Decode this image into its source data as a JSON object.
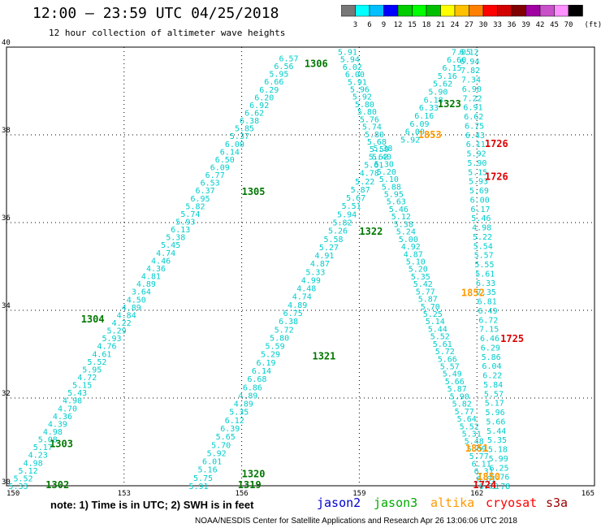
{
  "header": {
    "title": "12:00 — 23:59 UTC 04/25/2018",
    "subtitle": "12 hour collection of altimeter wave heights"
  },
  "legend": {
    "unit": "(ft)",
    "colors": [
      "#777777",
      "#00ffff",
      "#00bfff",
      "#0000ff",
      "#00cd00",
      "#00ff00",
      "#00bf00",
      "#ffff00",
      "#ffc000",
      "#ff8000",
      "#ff0000",
      "#d20000",
      "#800000",
      "#a000a0",
      "#c850c8",
      "#ff90ff",
      "#000000"
    ],
    "labels": [
      "3",
      "6",
      "9",
      "12",
      "15",
      "18",
      "21",
      "24",
      "27",
      "30",
      "33",
      "36",
      "39",
      "42",
      "45",
      "70"
    ]
  },
  "note": "note: 1) Time is in UTC; 2) SWH is in feet",
  "missions": [
    {
      "name": "jason2",
      "color": "#0000cc"
    },
    {
      "name": "jason3",
      "color": "#00aa00"
    },
    {
      "name": "altika",
      "color": "#ff9900"
    },
    {
      "name": "cryosat",
      "color": "#ff0000"
    },
    {
      "name": "s3a",
      "color": "#990000"
    }
  ],
  "footer": "NOAA/NESDIS Center for Satellite Applications and Research    Apr 26 13:06:06 UTC 2018",
  "chart_data": {
    "type": "scatter",
    "title": "12:00 — 23:59 UTC 04/25/2018",
    "x_ticks": [
      "150",
      "153",
      "156",
      "159",
      "162",
      "165"
    ],
    "y_ticks": [
      "30",
      "32",
      "34",
      "36",
      "38",
      "40"
    ],
    "xlim": [
      150,
      165
    ],
    "ylim": [
      30,
      40
    ],
    "grid": true,
    "pass_labels": [
      {
        "text": "1306",
        "lon": 157.6,
        "lat": 39.62,
        "color": "#007700"
      },
      {
        "text": "1305",
        "lon": 156.0,
        "lat": 36.7,
        "color": "#007700"
      },
      {
        "text": "1304",
        "lon": 151.9,
        "lat": 33.8,
        "color": "#007700"
      },
      {
        "text": "1303",
        "lon": 151.1,
        "lat": 30.95,
        "color": "#007700"
      },
      {
        "text": "1302",
        "lon": 151.0,
        "lat": 30.02,
        "color": "#007700"
      },
      {
        "text": "1323",
        "lon": 161.0,
        "lat": 38.7,
        "color": "#007700"
      },
      {
        "text": "1322",
        "lon": 159.0,
        "lat": 35.8,
        "color": "#007700"
      },
      {
        "text": "1321",
        "lon": 157.8,
        "lat": 32.95,
        "color": "#007700"
      },
      {
        "text": "1320",
        "lon": 156.0,
        "lat": 30.27,
        "color": "#007700"
      },
      {
        "text": "1319",
        "lon": 155.9,
        "lat": 30.02,
        "color": "#007700"
      },
      {
        "text": "1726",
        "lon": 162.2,
        "lat": 37.8,
        "color": "#dd0000"
      },
      {
        "text": "1726",
        "lon": 162.2,
        "lat": 37.05,
        "color": "#dd0000"
      },
      {
        "text": "1725",
        "lon": 162.6,
        "lat": 33.35,
        "color": "#dd0000"
      },
      {
        "text": "1724",
        "lon": 161.9,
        "lat": 30.02,
        "color": "#dd0000"
      },
      {
        "text": "1853",
        "lon": 160.5,
        "lat": 38.0,
        "color": "#ff9900"
      },
      {
        "text": "1852",
        "lon": 161.6,
        "lat": 34.4,
        "color": "#ff9900"
      },
      {
        "text": "1851",
        "lon": 161.7,
        "lat": 30.85,
        "color": "#ff9900"
      },
      {
        "text": "1850",
        "lon": 162.0,
        "lat": 30.2,
        "color": "#ff9900"
      }
    ],
    "tracks": [
      {
        "color": "#00cccc",
        "lon0": 150.3,
        "lat0": 30.0,
        "lon1": 157.2,
        "lat1": 39.75,
        "values": [
          "5.33",
          "5.52",
          "5.12",
          "4.98",
          "4.23",
          "5.17",
          "5.08",
          "4.98",
          "4.39",
          "4.36",
          "4.70",
          "4.98",
          "5.43",
          "5.15",
          "4.72",
          "5.95",
          "5.52",
          "4.61",
          "4.76",
          "5.93",
          "5.29",
          "4.22",
          "4.84",
          "4.89",
          "4.50",
          "3.64",
          "4.89",
          "4.81",
          "4.36",
          "4.46",
          "4.74",
          "5.45",
          "5.38",
          "6.13",
          "5.93",
          "5.74",
          "5.82",
          "6.95",
          "6.37",
          "6.53",
          "6.77",
          "6.09",
          "6.50",
          "6.14",
          "6.00",
          "5.37",
          "5.85",
          "6.38",
          "6.62",
          "6.92",
          "6.20",
          "6.29",
          "6.66",
          "5.95",
          "6.56",
          "6.57"
        ]
      },
      {
        "color": "#00cccc",
        "lon0": 154.9,
        "lat0": 30.0,
        "lon1": 159.6,
        "lat1": 37.7,
        "values": [
          "5.91",
          "5.75",
          "5.16",
          "6.01",
          "5.92",
          "5.70",
          "5.65",
          "6.39",
          "6.12",
          "5.35",
          "4.89",
          "4.89",
          "6.86",
          "6.68",
          "6.14",
          "6.19",
          "5.29",
          "5.59",
          "5.80",
          "5.72",
          "6.38",
          "6.75",
          "4.89",
          "4.74",
          "4.48",
          "4.99",
          "5.33",
          "4.87",
          "4.91",
          "5.27",
          "5.58",
          "5.26",
          "5.82",
          "5.94",
          "5.51",
          "5.67",
          "5.87",
          "5.22",
          "4.78",
          "5.61",
          "5.62",
          "5.38"
        ]
      },
      {
        "color": "#00cccc",
        "lon0": 158.7,
        "lat0": 39.9,
        "lon1": 162.3,
        "lat1": 30.0,
        "values": [
          "5.91",
          "5.94",
          "6.02",
          "6.00",
          "5.91",
          "5.96",
          "5.92",
          "5.80",
          "5.80",
          "5.76",
          "5.74",
          "5.80",
          "5.68",
          "5.50",
          "5.40",
          "5.30",
          "5.20",
          "5.10",
          "5.88",
          "5.95",
          "5.63",
          "5.46",
          "5.12",
          "5.38",
          "5.24",
          "5.00",
          "4.92",
          "4.87",
          "5.10",
          "5.20",
          "5.35",
          "5.42",
          "5.77",
          "5.87",
          "5.70",
          "5.25",
          "5.14",
          "5.44",
          "5.52",
          "5.61",
          "5.72",
          "5.66",
          "5.57",
          "5.49",
          "5.66",
          "5.87",
          "5.90",
          "5.82",
          "5.77",
          "5.64",
          "5.52",
          "5.31",
          "5.48",
          "5.69",
          "5.77",
          "6.11",
          "6.31",
          "6.61",
          "6.78"
        ]
      },
      {
        "color": "#00cccc",
        "lon0": 161.6,
        "lat0": 39.9,
        "lon1": 160.3,
        "lat1": 37.9,
        "values": [
          "7.05",
          "6.60",
          "6.15",
          "5.16",
          "5.62",
          "5.90",
          "6.18",
          "6.33",
          "6.16",
          "6.09",
          "6.00",
          "5.92"
        ]
      },
      {
        "color": "#00cccc",
        "lon0": 161.8,
        "lat0": 39.9,
        "lon1": 162.6,
        "lat1": 30.0,
        "values": [
          "6.12",
          "6.94",
          "7.82",
          "7.34",
          "6.90",
          "7.22",
          "6.91",
          "6.62",
          "6.75",
          "6.43",
          "6.11",
          "5.92",
          "5.90",
          "5.15",
          "5.93",
          "5.69",
          "6.00",
          "6.17",
          "5.46",
          "4.98",
          "5.22",
          "5.54",
          "5.57",
          "5.55",
          "5.61",
          "6.33",
          "7.35",
          "6.81",
          "6.49",
          "6.72",
          "7.15",
          "6.46",
          "6.29",
          "5.86",
          "6.04",
          "6.22",
          "5.84",
          "5.57",
          "5.17",
          "5.96",
          "5.66",
          "5.44",
          "5.35",
          "5.18",
          "5.99",
          "6.25",
          "6.76",
          "6.78"
        ]
      }
    ]
  }
}
